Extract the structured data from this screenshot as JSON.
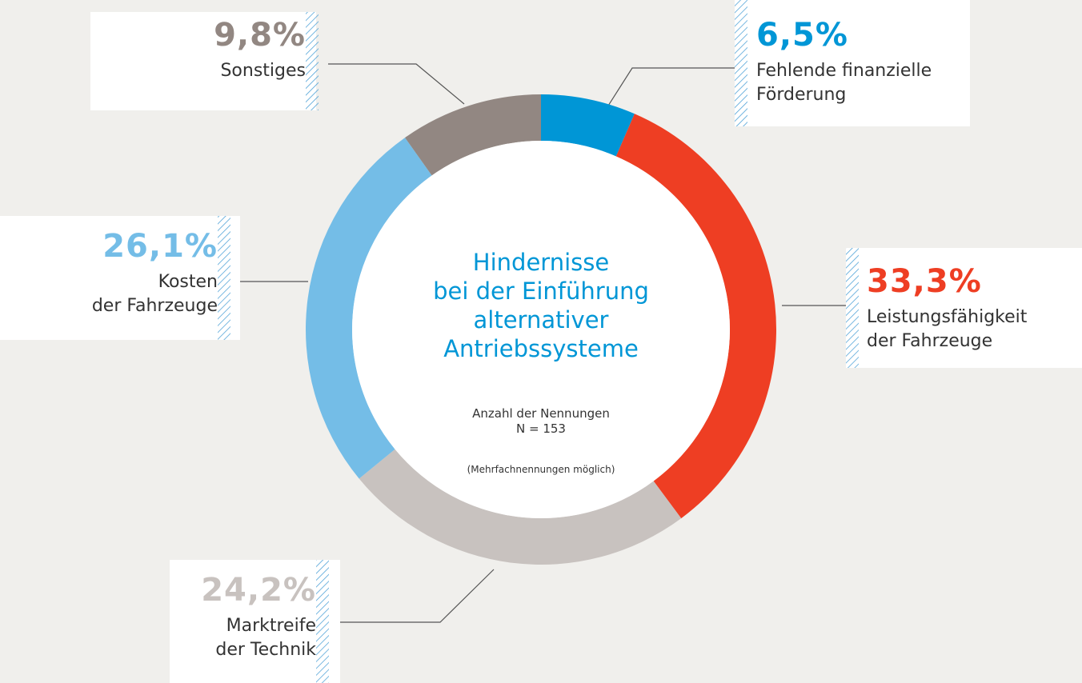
{
  "chart_data": {
    "type": "donut",
    "title": "Hindernisse\nbei der Einführung\nalternativer\nAntriebssysteme",
    "subtitle": "Anzahl der Nennungen\nN = 153",
    "note": "(Mehrfachnennungen möglich)",
    "categories": [
      "Fehlende finanzielle\nFörderung",
      "Leistungsfähigkeit\nder Fahrzeuge",
      "Marktreife\nder Technik",
      "Kosten\nder Fahrzeuge",
      "Sonstiges"
    ],
    "values": [
      6.5,
      33.3,
      24.2,
      26.1,
      9.8
    ],
    "value_labels": [
      "6,5%",
      "33,3%",
      "24,2%",
      "26,1%",
      "9,8%"
    ],
    "colors": [
      "#0096d6",
      "#ee3e23",
      "#c8c2bf",
      "#74bde7",
      "#928782"
    ]
  }
}
